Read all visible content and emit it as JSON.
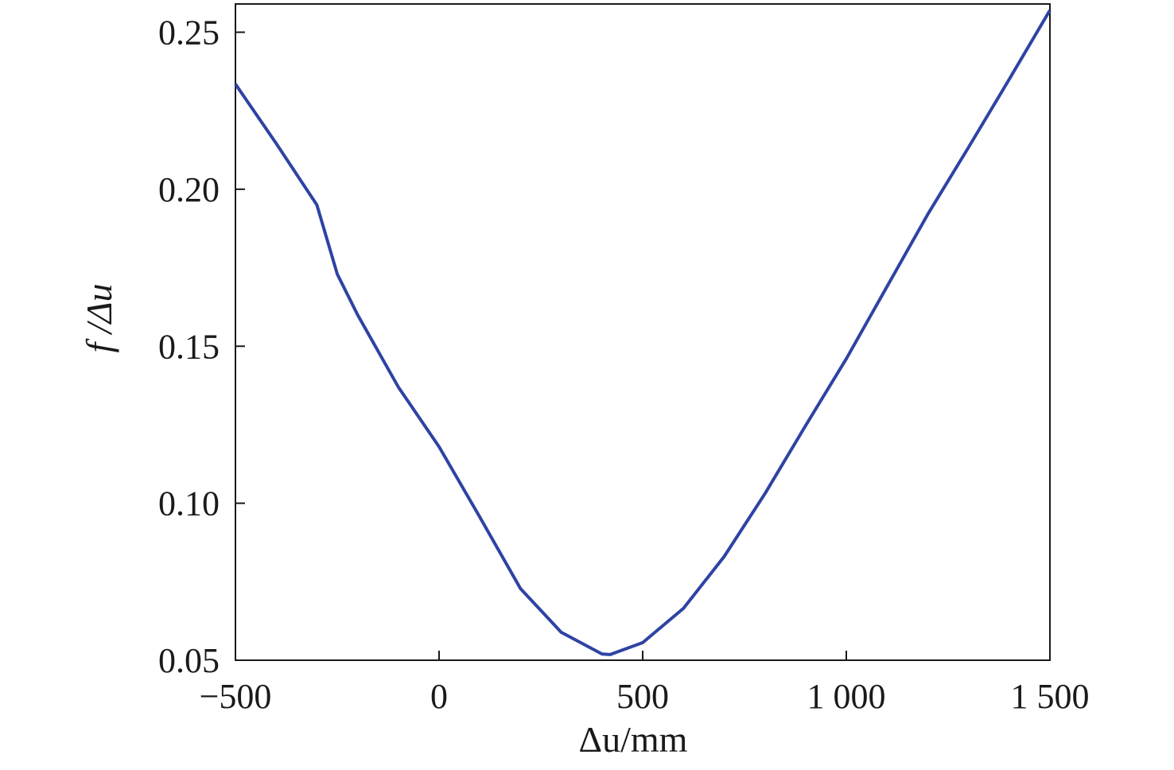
{
  "chart_data": {
    "type": "line",
    "x_label": "Δu/mm",
    "y_label": "f /Δu",
    "xlim": [
      -500,
      1500
    ],
    "ylim": [
      0.05,
      0.259
    ],
    "xticks": [
      {
        "value": -500,
        "label": "−500"
      },
      0,
      500,
      {
        "value": 1000,
        "label": "1 000"
      },
      {
        "value": 1500,
        "label": "1 500"
      }
    ],
    "yticks": [
      {
        "value": 0.05,
        "label": "0.05"
      },
      {
        "value": 0.1,
        "label": "0.10"
      },
      0.15,
      {
        "value": 0.2,
        "label": "0.20"
      },
      0.25
    ],
    "x": [
      -500,
      -400,
      -300,
      -250,
      -200,
      -100,
      0,
      100,
      200,
      300,
      400,
      420,
      500,
      600,
      700,
      800,
      900,
      1000,
      1100,
      1200,
      1300,
      1400,
      1500
    ],
    "series": [
      {
        "color": "#2e43a3",
        "values": [
          0.2335,
          0.2146,
          0.195,
          0.173,
          0.16,
          0.137,
          0.118,
          0.0956,
          0.0728,
          0.0589,
          0.052,
          0.0518,
          0.0556,
          0.0665,
          0.083,
          0.103,
          0.1247,
          0.146,
          0.169,
          0.192,
          0.2133,
          0.235,
          0.257
        ]
      }
    ]
  }
}
